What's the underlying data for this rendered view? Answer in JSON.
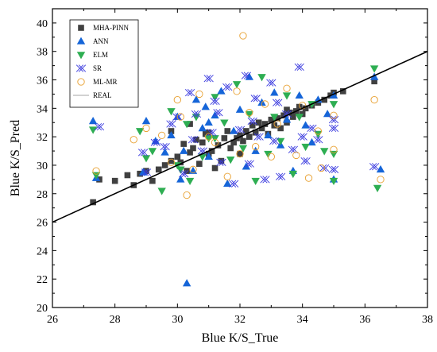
{
  "chart_data": {
    "type": "scatter",
    "xlabel": "Blue K/S_True",
    "ylabel": "Blue K/S_Pred",
    "xlim": [
      26,
      38
    ],
    "ylim": [
      20,
      41
    ],
    "xticks": [
      "26",
      "28",
      "30",
      "32",
      "34",
      "36",
      "38"
    ],
    "yticks": [
      "20",
      "22",
      "24",
      "26",
      "28",
      "30",
      "32",
      "34",
      "36",
      "38",
      "40"
    ],
    "grid": false,
    "legend_position": "top-left",
    "colors": {
      "MHA-PINN": "#404040",
      "ANN": "#1565d8",
      "ELM": "#2eae52",
      "SR": "#3a3adf",
      "ML-MR": "#e8a030",
      "REAL": "#000000"
    },
    "series": [
      {
        "name": "MHA-PINN",
        "marker": "square",
        "points": [
          [
            27.3,
            27.4
          ],
          [
            27.5,
            29.0
          ],
          [
            28.0,
            28.9
          ],
          [
            28.4,
            29.3
          ],
          [
            28.6,
            28.6
          ],
          [
            28.8,
            29.4
          ],
          [
            29.0,
            29.6
          ],
          [
            29.2,
            28.9
          ],
          [
            29.4,
            29.7
          ],
          [
            29.6,
            30.0
          ],
          [
            29.8,
            30.3
          ],
          [
            30.0,
            30.6
          ],
          [
            30.1,
            30.2
          ],
          [
            30.2,
            31.5
          ],
          [
            30.3,
            29.6
          ],
          [
            30.4,
            30.9
          ],
          [
            30.5,
            31.2
          ],
          [
            30.6,
            31.8
          ],
          [
            30.7,
            30.1
          ],
          [
            30.8,
            31.6
          ],
          [
            30.9,
            32.2
          ],
          [
            31.0,
            30.8
          ],
          [
            31.1,
            31.0
          ],
          [
            31.3,
            31.4
          ],
          [
            31.4,
            30.3
          ],
          [
            31.5,
            31.9
          ],
          [
            31.6,
            32.4
          ],
          [
            31.7,
            31.2
          ],
          [
            31.8,
            31.6
          ],
          [
            31.9,
            31.9
          ],
          [
            32.0,
            32.1
          ],
          [
            32.1,
            31.7
          ],
          [
            32.2,
            32.4
          ],
          [
            32.3,
            32.0
          ],
          [
            32.4,
            32.8
          ],
          [
            32.5,
            32.3
          ],
          [
            32.6,
            33.0
          ],
          [
            32.7,
            32.6
          ],
          [
            32.8,
            32.9
          ],
          [
            32.9,
            32.2
          ],
          [
            33.0,
            33.2
          ],
          [
            33.1,
            32.8
          ],
          [
            33.2,
            33.3
          ],
          [
            33.3,
            32.6
          ],
          [
            33.4,
            33.5
          ],
          [
            33.5,
            33.0
          ],
          [
            33.6,
            33.7
          ],
          [
            33.7,
            33.4
          ],
          [
            33.8,
            33.8
          ],
          [
            33.9,
            34.1
          ],
          [
            34.0,
            33.6
          ],
          [
            34.1,
            34.0
          ],
          [
            34.3,
            34.2
          ],
          [
            34.5,
            34.4
          ],
          [
            34.7,
            34.6
          ],
          [
            34.9,
            34.9
          ],
          [
            35.0,
            35.1
          ],
          [
            35.3,
            35.2
          ],
          [
            36.3,
            35.9
          ],
          [
            29.8,
            32.4
          ],
          [
            30.4,
            32.9
          ],
          [
            31.2,
            29.8
          ],
          [
            32.0,
            30.8
          ],
          [
            33.5,
            33.9
          ],
          [
            31.0,
            32.3
          ]
        ]
      },
      {
        "name": "ANN",
        "marker": "triangle-up",
        "points": [
          [
            27.3,
            33.1
          ],
          [
            27.4,
            29.1
          ],
          [
            28.9,
            29.5
          ],
          [
            29.0,
            33.1
          ],
          [
            29.3,
            31.7
          ],
          [
            29.6,
            30.9
          ],
          [
            29.8,
            32.1
          ],
          [
            30.0,
            33.4
          ],
          [
            30.1,
            29.0
          ],
          [
            30.2,
            31.0
          ],
          [
            30.3,
            21.7
          ],
          [
            30.5,
            29.6
          ],
          [
            30.6,
            34.6
          ],
          [
            30.8,
            32.6
          ],
          [
            30.9,
            34.1
          ],
          [
            31.0,
            30.6
          ],
          [
            31.2,
            33.5
          ],
          [
            31.4,
            35.2
          ],
          [
            31.6,
            28.7
          ],
          [
            31.8,
            32.4
          ],
          [
            32.0,
            33.9
          ],
          [
            32.2,
            29.9
          ],
          [
            32.3,
            36.2
          ],
          [
            32.5,
            31.0
          ],
          [
            32.7,
            34.4
          ],
          [
            32.9,
            32.1
          ],
          [
            33.1,
            35.1
          ],
          [
            33.3,
            31.4
          ],
          [
            33.5,
            33.2
          ],
          [
            33.7,
            29.6
          ],
          [
            33.9,
            34.9
          ],
          [
            34.1,
            32.8
          ],
          [
            34.3,
            31.6
          ],
          [
            34.5,
            34.6
          ],
          [
            34.8,
            33.6
          ],
          [
            35.0,
            29.0
          ],
          [
            35.0,
            34.9
          ],
          [
            36.3,
            36.2
          ],
          [
            36.5,
            29.7
          ],
          [
            31.0,
            33.0
          ]
        ]
      },
      {
        "name": "ELM",
        "marker": "triangle-down",
        "points": [
          [
            27.3,
            32.5
          ],
          [
            27.4,
            29.3
          ],
          [
            28.8,
            32.4
          ],
          [
            29.0,
            30.5
          ],
          [
            29.5,
            28.2
          ],
          [
            29.8,
            33.8
          ],
          [
            30.1,
            29.7
          ],
          [
            30.3,
            32.9
          ],
          [
            30.4,
            28.9
          ],
          [
            30.6,
            33.4
          ],
          [
            30.8,
            30.6
          ],
          [
            31.0,
            31.9
          ],
          [
            31.2,
            34.8
          ],
          [
            31.5,
            33.0
          ],
          [
            31.7,
            30.4
          ],
          [
            31.9,
            35.7
          ],
          [
            32.1,
            31.2
          ],
          [
            32.3,
            33.6
          ],
          [
            32.5,
            28.9
          ],
          [
            32.7,
            36.2
          ],
          [
            32.9,
            30.8
          ],
          [
            33.1,
            33.4
          ],
          [
            33.3,
            31.7
          ],
          [
            33.5,
            34.9
          ],
          [
            33.7,
            29.4
          ],
          [
            33.9,
            33.4
          ],
          [
            34.1,
            31.3
          ],
          [
            34.3,
            34.3
          ],
          [
            34.5,
            32.2
          ],
          [
            34.7,
            31.0
          ],
          [
            35.0,
            28.9
          ],
          [
            35.0,
            34.3
          ],
          [
            35.0,
            30.8
          ],
          [
            36.3,
            36.8
          ],
          [
            36.4,
            28.4
          ],
          [
            31.2,
            31.9
          ],
          [
            30.0,
            30.0
          ],
          [
            29.2,
            31.0
          ]
        ]
      },
      {
        "name": "SR",
        "marker": "x-cross",
        "points": [
          [
            27.5,
            32.7
          ],
          [
            28.9,
            30.9
          ],
          [
            29.0,
            29.5
          ],
          [
            29.6,
            31.3
          ],
          [
            29.8,
            32.9
          ],
          [
            30.0,
            33.4
          ],
          [
            30.2,
            29.4
          ],
          [
            30.4,
            35.1
          ],
          [
            30.6,
            33.6
          ],
          [
            30.8,
            31.0
          ],
          [
            31.0,
            36.1
          ],
          [
            31.1,
            32.3
          ],
          [
            31.2,
            34.5
          ],
          [
            31.4,
            30.2
          ],
          [
            31.6,
            35.5
          ],
          [
            31.8,
            28.7
          ],
          [
            32.0,
            32.5
          ],
          [
            32.2,
            36.3
          ],
          [
            32.3,
            30.1
          ],
          [
            32.5,
            34.7
          ],
          [
            32.6,
            32.0
          ],
          [
            32.8,
            29.0
          ],
          [
            33.0,
            35.8
          ],
          [
            33.1,
            31.7
          ],
          [
            33.3,
            29.2
          ],
          [
            33.5,
            33.6
          ],
          [
            33.7,
            31.1
          ],
          [
            33.9,
            36.9
          ],
          [
            34.1,
            30.3
          ],
          [
            34.3,
            32.6
          ],
          [
            34.5,
            31.8
          ],
          [
            34.7,
            29.8
          ],
          [
            35.0,
            33.2
          ],
          [
            35.0,
            32.6
          ],
          [
            35.0,
            29.7
          ],
          [
            36.3,
            29.9
          ],
          [
            29.3,
            31.6
          ],
          [
            30.5,
            31.8
          ],
          [
            32.4,
            33.1
          ],
          [
            34.0,
            32.0
          ],
          [
            31.3,
            33.7
          ],
          [
            33.2,
            34.4
          ]
        ]
      },
      {
        "name": "ML-MR",
        "marker": "circle-open",
        "points": [
          [
            27.4,
            29.6
          ],
          [
            28.6,
            31.8
          ],
          [
            29.0,
            32.6
          ],
          [
            29.5,
            32.1
          ],
          [
            29.8,
            30.2
          ],
          [
            30.0,
            34.6
          ],
          [
            30.1,
            33.4
          ],
          [
            30.3,
            27.9
          ],
          [
            30.5,
            29.7
          ],
          [
            30.7,
            35.0
          ],
          [
            31.0,
            32.0
          ],
          [
            31.2,
            31.6
          ],
          [
            31.6,
            29.2
          ],
          [
            31.9,
            35.2
          ],
          [
            32.0,
            30.8
          ],
          [
            32.1,
            39.1
          ],
          [
            32.3,
            33.7
          ],
          [
            32.5,
            31.3
          ],
          [
            32.8,
            34.3
          ],
          [
            33.0,
            30.6
          ],
          [
            33.2,
            32.9
          ],
          [
            33.5,
            35.4
          ],
          [
            33.8,
            30.7
          ],
          [
            34.0,
            34.2
          ],
          [
            34.2,
            29.1
          ],
          [
            34.5,
            32.4
          ],
          [
            34.6,
            29.8
          ],
          [
            35.0,
            33.5
          ],
          [
            35.0,
            31.1
          ],
          [
            36.3,
            34.6
          ],
          [
            36.5,
            29.0
          ]
        ]
      },
      {
        "name": "REAL",
        "marker": "line",
        "points": [
          [
            26,
            26
          ],
          [
            38,
            38
          ]
        ]
      }
    ]
  }
}
